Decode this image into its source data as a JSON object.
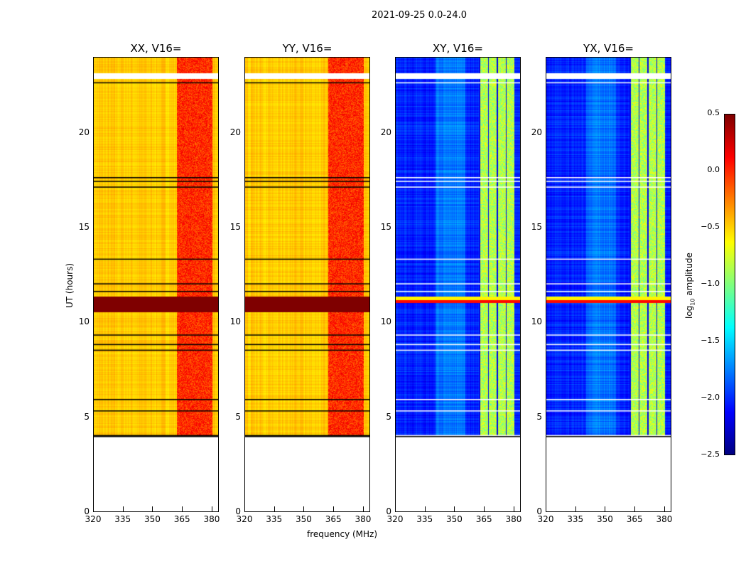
{
  "title": "2021-09-25 0.0-24.0",
  "chart_data": [
    {
      "type": "heatmap",
      "title": "XX, V16=",
      "kind": "auto",
      "base": -0.6,
      "rfi": -0.1
    },
    {
      "type": "heatmap",
      "title": "YY, V16=",
      "kind": "auto",
      "base": -0.6,
      "rfi": -0.1
    },
    {
      "type": "heatmap",
      "title": "XY, V16=",
      "kind": "cross",
      "base": -2.2,
      "rfi": -1.0
    },
    {
      "type": "heatmap",
      "title": "YX, V16=",
      "kind": "cross",
      "base": -2.2,
      "rfi": -1.0
    }
  ],
  "axes": {
    "xlabel": "frequency (MHz)",
    "ylabel": "UT (hours)",
    "xlim": [
      320,
      383.6
    ],
    "ylim": [
      0,
      24
    ],
    "xticks": [
      "320",
      "335",
      "350",
      "365",
      "380"
    ],
    "xtick_values": [
      320,
      335,
      350,
      365,
      380
    ],
    "yticks": [
      "0",
      "5",
      "10",
      "15",
      "20"
    ],
    "ytick_values": [
      0,
      5,
      10,
      15,
      20
    ],
    "data_start_hour": 4.05,
    "rfi_band_mhz": [
      362,
      380
    ],
    "flagged_hours": [
      [
        22.9,
        23.2
      ],
      [
        11.0,
        11.4
      ]
    ],
    "black_line_hours": [
      22.7,
      17.7,
      17.5,
      17.2,
      13.4,
      12.1,
      11.7,
      9.4,
      8.9,
      8.6,
      6.0,
      5.4,
      4.1
    ]
  },
  "colorbar": {
    "label": "log10 amplitude",
    "label_main": "log",
    "label_sub": "10",
    "label_rest": " amplitude",
    "range": [
      -2.5,
      0.5
    ],
    "ticks": [
      "0.5",
      "0.0",
      "−0.5",
      "−1.0",
      "−1.5",
      "−2.0",
      "−2.5"
    ],
    "tick_values": [
      0.5,
      0.0,
      -0.5,
      -1.0,
      -1.5,
      -2.0,
      -2.5
    ]
  }
}
